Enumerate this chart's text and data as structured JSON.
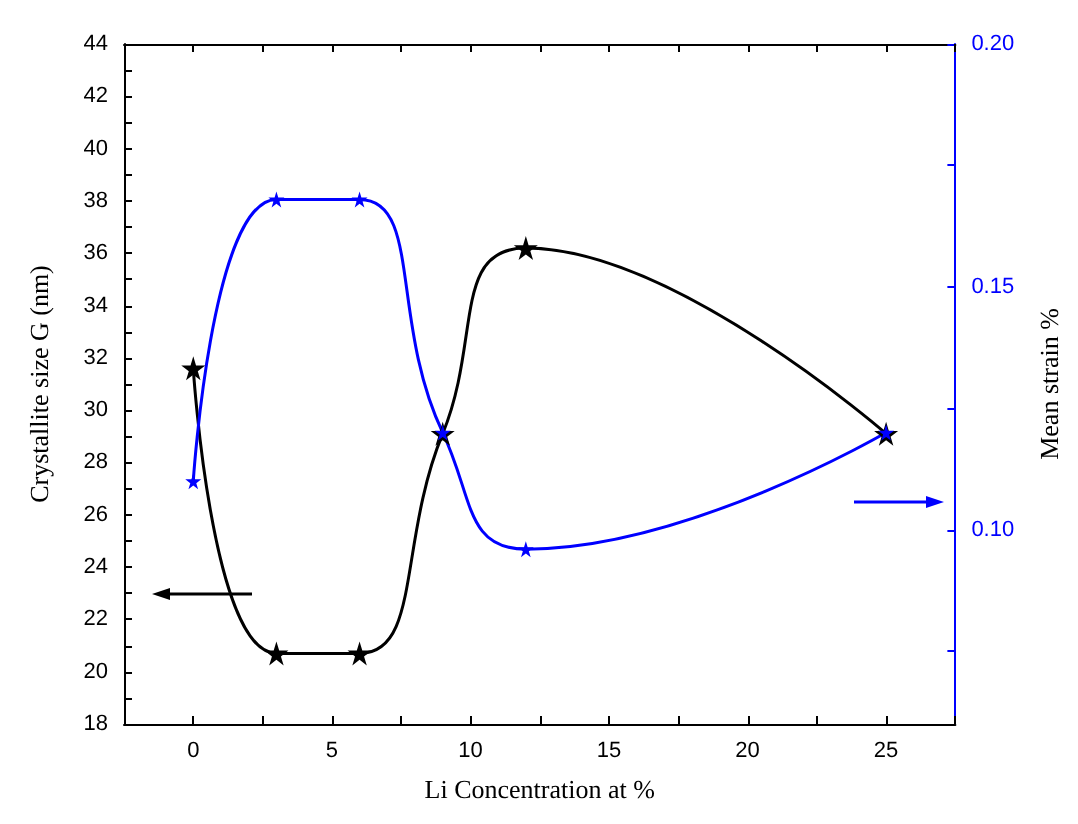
{
  "chart_data": {
    "type": "line",
    "xlabel": "Li Concentration at %",
    "ylabel": "Crystallite size G (nm)",
    "y2label": "Mean strain %",
    "x": [
      0,
      3,
      6,
      9,
      12,
      25
    ],
    "series": [
      {
        "color": "#000000",
        "values": [
          31.6,
          20.7,
          20.7,
          29.1,
          36.2,
          29.1
        ]
      },
      {
        "color": "#0000ff",
        "axis": "y2",
        "values": [
          0.11,
          0.168,
          0.168,
          0.12,
          0.096,
          0.12
        ]
      }
    ],
    "xlim": [
      -2.5,
      27.5
    ],
    "xticks": [
      {
        "value": -2.5,
        "label": null
      },
      0,
      {
        "value": 2.5,
        "label": null
      },
      5,
      {
        "value": 7.5,
        "label": null
      },
      10,
      {
        "value": 12.5,
        "label": null
      },
      15,
      {
        "value": 17.5,
        "label": null
      },
      20,
      {
        "value": 22.5,
        "label": null
      },
      25,
      {
        "value": 27.5,
        "label": null
      }
    ],
    "ylim": [
      18,
      44
    ],
    "yticks": [
      18,
      {
        "value": 19,
        "label": null
      },
      20,
      {
        "value": 21,
        "label": null
      },
      22,
      {
        "value": 23,
        "label": null
      },
      24,
      {
        "value": 25,
        "label": null
      },
      26,
      {
        "value": 27,
        "label": null
      },
      28,
      {
        "value": 29,
        "label": null
      },
      30,
      {
        "value": 31,
        "label": null
      },
      32,
      {
        "value": 33,
        "label": null
      },
      34,
      {
        "value": 35,
        "label": null
      },
      36,
      {
        "value": 37,
        "label": null
      },
      38,
      {
        "value": 39,
        "label": null
      },
      40,
      {
        "value": 41,
        "label": null
      },
      42,
      {
        "value": 43,
        "label": null
      },
      44
    ],
    "y2lim": [
      0.06,
      0.2
    ],
    "y2ticks": [
      {
        "value": 0.075,
        "label": null
      },
      {
        "value": 0.1,
        "label": "0.10"
      },
      {
        "value": 0.125,
        "label": null
      },
      {
        "value": 0.15,
        "label": "0.15"
      },
      {
        "value": 0.175,
        "label": null
      },
      {
        "value": 0.2,
        "label": "0.20"
      }
    ],
    "marker": "star",
    "line_style": "solid"
  }
}
